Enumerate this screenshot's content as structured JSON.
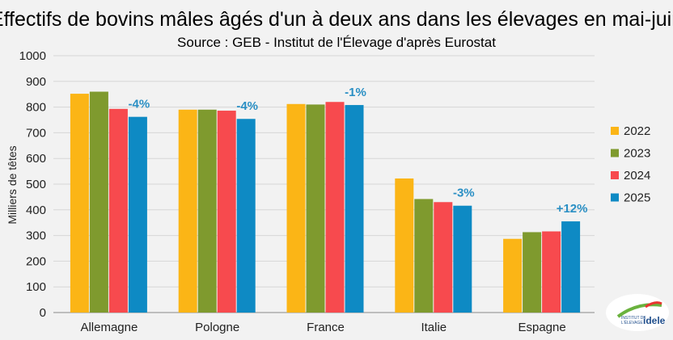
{
  "chart_data": {
    "type": "bar",
    "title": "Effectifs de bovins mâles âgés d'un à deux ans dans les élevages en mai-juin",
    "subtitle": "Source : GEB - Institut de l'Élevage d'après Eurostat",
    "ylabel": "Milliers de têtes",
    "xlabel": "",
    "ylim": [
      0,
      1000
    ],
    "yticks": [
      0,
      100,
      200,
      300,
      400,
      500,
      600,
      700,
      800,
      900,
      1000
    ],
    "grid": true,
    "legend_position": "right",
    "categories": [
      "Allemagne",
      "Pologne",
      "France",
      "Italie",
      "Espagne"
    ],
    "series": [
      {
        "name": "2022",
        "color": "#fbb516",
        "values": [
          852,
          790,
          812,
          522,
          287
        ]
      },
      {
        "name": "2023",
        "color": "#7f9a2e",
        "values": [
          860,
          790,
          810,
          442,
          313
        ]
      },
      {
        "name": "2024",
        "color": "#f74a4e",
        "values": [
          793,
          786,
          820,
          430,
          316
        ]
      },
      {
        "name": "2025",
        "color": "#0e8ac4",
        "values": [
          762,
          754,
          808,
          416,
          355
        ]
      }
    ],
    "annotations": [
      "-4%",
      "-4%",
      "-1%",
      "-3%",
      "+12%"
    ]
  },
  "logo": {
    "line1": "INSTITUT DE",
    "line2": "L'ÉLEVAGE",
    "word": "idele"
  }
}
